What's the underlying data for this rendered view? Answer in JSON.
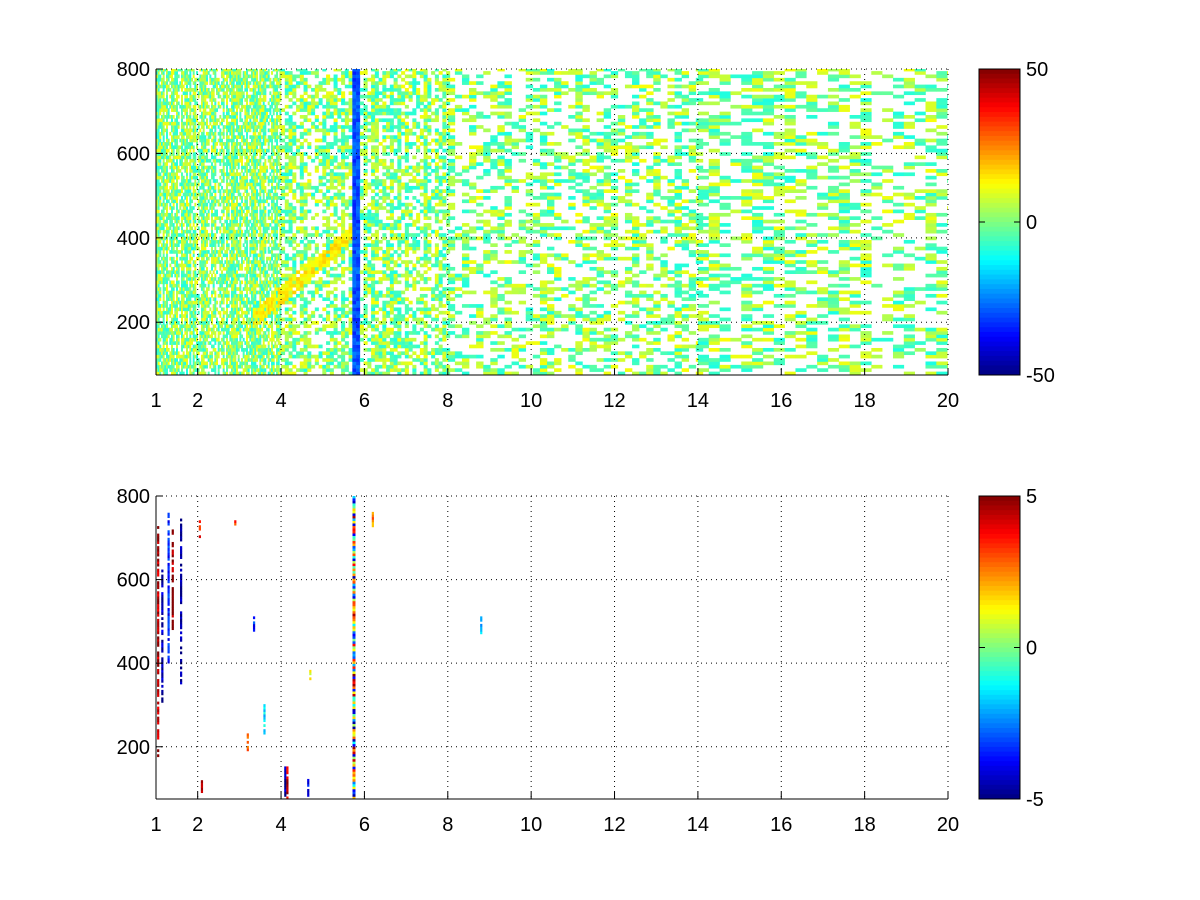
{
  "chart_data": [
    {
      "type": "heatmap",
      "title": "",
      "xlabel": "",
      "ylabel": "",
      "xlim": [
        1,
        20
      ],
      "ylim": [
        75,
        800
      ],
      "x_ticks": [
        1,
        2,
        4,
        6,
        8,
        10,
        12,
        14,
        16,
        18,
        20
      ],
      "y_ticks": [
        200,
        400,
        600,
        800
      ],
      "grid": true,
      "colormap": "jet",
      "colorbar": {
        "range": [
          -50,
          50
        ],
        "ticks": [
          -50,
          0,
          50
        ]
      },
      "structure": {
        "x_bin_width_by_band": [
          {
            "from": 1,
            "to": 4,
            "width": 0.04
          },
          {
            "from": 4,
            "to": 8,
            "width": 0.09
          },
          {
            "from": 8,
            "to": 14,
            "width": 0.17
          },
          {
            "from": 14,
            "to": 20,
            "width": 0.26
          }
        ],
        "y_bin_height": 8,
        "coverage_by_band": [
          {
            "from": 1,
            "to": 4,
            "coverage": 0.78
          },
          {
            "from": 4,
            "to": 8,
            "coverage": 0.6
          },
          {
            "from": 8,
            "to": 14,
            "coverage": 0.42
          },
          {
            "from": 14,
            "to": 20,
            "coverage": 0.4
          }
        ],
        "typical_value_range": [
          -10,
          12
        ],
        "strong_column_x": 5.75,
        "strong_column_value": -30,
        "diagonal_feature": {
          "x": [
            3.3,
            5.8
          ],
          "y": [
            200,
            420
          ],
          "value": 14
        }
      }
    },
    {
      "type": "heatmap",
      "title": "",
      "xlabel": "",
      "ylabel": "",
      "xlim": [
        1,
        20
      ],
      "ylim": [
        75,
        800
      ],
      "x_ticks": [
        1,
        2,
        4,
        6,
        8,
        10,
        12,
        14,
        16,
        18,
        20
      ],
      "y_ticks": [
        200,
        400,
        600,
        800
      ],
      "grid": true,
      "colormap": "jet",
      "colorbar": {
        "range": [
          -5,
          5
        ],
        "ticks": [
          -5,
          0,
          5
        ]
      },
      "structure": {
        "strong_column_x": 5.75,
        "strong_column_value_range": [
          -5,
          5
        ],
        "sparse_streaks": [
          {
            "x": 1.05,
            "y": [
              170,
              730
            ],
            "value": 4.5
          },
          {
            "x": 1.15,
            "y": [
              300,
              630
            ],
            "value": -4.5
          },
          {
            "x": 1.3,
            "y": [
              400,
              760
            ],
            "value": -3.5
          },
          {
            "x": 1.4,
            "y": [
              480,
              720
            ],
            "value": 4.8
          },
          {
            "x": 1.6,
            "y": [
              350,
              750
            ],
            "value": -4.8
          },
          {
            "x": 2.1,
            "y": [
              90,
              120
            ],
            "value": 4.5
          },
          {
            "x": 2.05,
            "y": [
              700,
              740
            ],
            "value": 3.5
          },
          {
            "x": 2.9,
            "y": [
              730,
              745
            ],
            "value": 3.2
          },
          {
            "x": 3.35,
            "y": [
              470,
              510
            ],
            "value": -3.5
          },
          {
            "x": 3.2,
            "y": [
              190,
              230
            ],
            "value": 2.6
          },
          {
            "x": 3.6,
            "y": [
              230,
              300
            ],
            "value": -1.5
          },
          {
            "x": 4.1,
            "y": [
              75,
              150
            ],
            "value": -4.5
          },
          {
            "x": 4.15,
            "y": [
              75,
              150
            ],
            "value": 4.2
          },
          {
            "x": 4.65,
            "y": [
              75,
              125
            ],
            "value": -3.8
          },
          {
            "x": 4.7,
            "y": [
              360,
              390
            ],
            "value": 1.2
          },
          {
            "x": 6.2,
            "y": [
              720,
              760
            ],
            "value": 2.4
          },
          {
            "x": 8.8,
            "y": [
              470,
              510
            ],
            "value": -1.8
          }
        ]
      }
    }
  ]
}
